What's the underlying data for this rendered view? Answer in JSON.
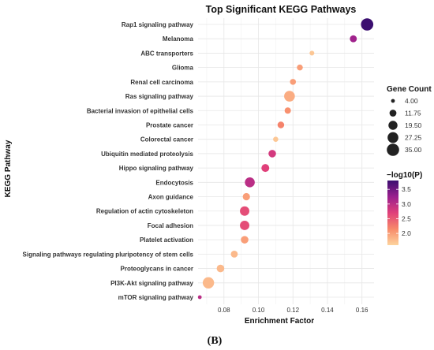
{
  "chart_data": {
    "type": "scatter",
    "title": "Top Significant KEGG Pathways",
    "xlabel": "Enrichment Factor",
    "ylabel": "KEGG Pathway",
    "xlim": [
      0.065,
      0.167
    ],
    "xticks": [
      "0.08",
      "0.10",
      "0.12",
      "0.14",
      "0.16"
    ],
    "grid": true,
    "panel_label": "(B)",
    "categories": [
      "Rap1 signaling pathway",
      "Melanoma",
      "ABC transporters",
      "Glioma",
      "Renal cell carcinoma",
      "Ras signaling pathway",
      "Bacterial invasion of epithelial cells",
      "Prostate cancer",
      "Colorectal cancer",
      "Ubiquitin mediated proteolysis",
      "Hippo signaling pathway",
      "Endocytosis",
      "Axon guidance",
      "Regulation of actin cytoskeleton",
      "Focal adhesion",
      "Platelet activation",
      "Signaling pathways regulating pluripotency of stem cells",
      "Proteoglycans in cancer",
      "PI3K-Akt signaling pathway",
      "mTOR signaling pathway"
    ],
    "points": [
      {
        "pathway": "Rap1 signaling pathway",
        "enrichment_factor": 0.163,
        "gene_count": 35,
        "neg_log10_p": 3.8
      },
      {
        "pathway": "Melanoma",
        "enrichment_factor": 0.155,
        "gene_count": 12,
        "neg_log10_p": 3.2
      },
      {
        "pathway": "ABC transporters",
        "enrichment_factor": 0.131,
        "gene_count": 6,
        "neg_log10_p": 1.7
      },
      {
        "pathway": "Glioma",
        "enrichment_factor": 0.124,
        "gene_count": 9,
        "neg_log10_p": 2.0
      },
      {
        "pathway": "Renal cell carcinoma",
        "enrichment_factor": 0.12,
        "gene_count": 9,
        "neg_log10_p": 2.0
      },
      {
        "pathway": "Ras signaling pathway",
        "enrichment_factor": 0.118,
        "gene_count": 27,
        "neg_log10_p": 1.9
      },
      {
        "pathway": "Bacterial invasion of epithelial cells",
        "enrichment_factor": 0.117,
        "gene_count": 10,
        "neg_log10_p": 2.1
      },
      {
        "pathway": "Prostate cancer",
        "enrichment_factor": 0.113,
        "gene_count": 11,
        "neg_log10_p": 2.2
      },
      {
        "pathway": "Colorectal cancer",
        "enrichment_factor": 0.11,
        "gene_count": 7,
        "neg_log10_p": 1.7
      },
      {
        "pathway": "Ubiquitin mediated proteolysis",
        "enrichment_factor": 0.108,
        "gene_count": 14,
        "neg_log10_p": 2.8
      },
      {
        "pathway": "Hippo signaling pathway",
        "enrichment_factor": 0.104,
        "gene_count": 15,
        "neg_log10_p": 2.7
      },
      {
        "pathway": "Endocytosis",
        "enrichment_factor": 0.095,
        "gene_count": 23,
        "neg_log10_p": 3.0
      },
      {
        "pathway": "Axon guidance",
        "enrichment_factor": 0.093,
        "gene_count": 13,
        "neg_log10_p": 2.0
      },
      {
        "pathway": "Regulation of actin cytoskeleton",
        "enrichment_factor": 0.092,
        "gene_count": 21,
        "neg_log10_p": 2.6
      },
      {
        "pathway": "Focal adhesion",
        "enrichment_factor": 0.092,
        "gene_count": 21,
        "neg_log10_p": 2.6
      },
      {
        "pathway": "Platelet activation",
        "enrichment_factor": 0.092,
        "gene_count": 14,
        "neg_log10_p": 2.0
      },
      {
        "pathway": "Signaling pathways regulating pluripotency of stem cells",
        "enrichment_factor": 0.086,
        "gene_count": 12,
        "neg_log10_p": 1.8
      },
      {
        "pathway": "Proteoglycans in cancer",
        "enrichment_factor": 0.078,
        "gene_count": 14,
        "neg_log10_p": 1.8
      },
      {
        "pathway": "PI3K-Akt signaling pathway",
        "enrichment_factor": 0.071,
        "gene_count": 30,
        "neg_log10_p": 1.8
      },
      {
        "pathway": "mTOR signaling pathway",
        "enrichment_factor": 0.066,
        "gene_count": 4,
        "neg_log10_p": 3.0
      }
    ],
    "size_legend": {
      "title": "Gene Count",
      "labels": [
        "4.00",
        "11.75",
        "19.50",
        "27.25",
        "35.00"
      ],
      "values": [
        4,
        11.75,
        19.5,
        27.25,
        35
      ],
      "placement": "right"
    },
    "color_legend": {
      "title": "−log10(P)",
      "labels": [
        "3.5",
        "3.0",
        "2.5",
        "2.0"
      ],
      "values": [
        3.5,
        3.0,
        2.5,
        2.0
      ],
      "min": 1.6,
      "max": 3.8,
      "colors": [
        "#fdd49e",
        "#f78a6a",
        "#e0407a",
        "#9a1f8e",
        "#3b0f70"
      ],
      "placement": "right"
    }
  }
}
